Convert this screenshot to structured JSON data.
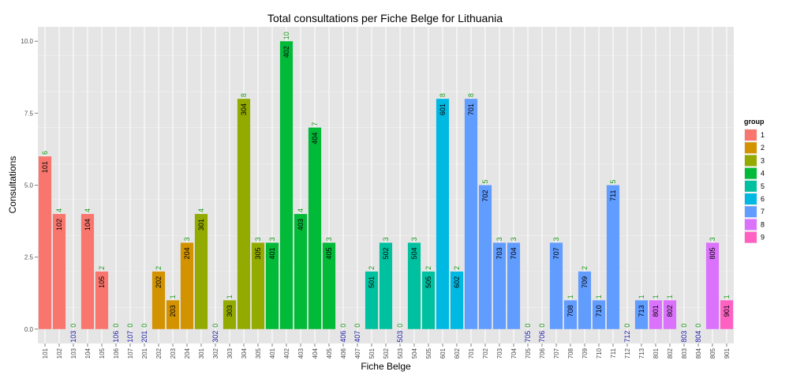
{
  "chart_data": {
    "type": "bar",
    "title": "Total consultations per Fiche Belge for Lithuania",
    "xlabel": "Fiche Belge",
    "ylabel": "Consultations",
    "ylim": [
      0,
      10.5
    ],
    "yticks": [
      0,
      2.5,
      5,
      7.5,
      10
    ],
    "ytick_labels": [
      "0.0",
      "2.5",
      "5.0",
      "7.5",
      "10.0"
    ],
    "grid": true,
    "legend_position": "right",
    "legend_title": "group",
    "groups": [
      {
        "name": "1",
        "color": "#F8766D"
      },
      {
        "name": "2",
        "color": "#D39200"
      },
      {
        "name": "3",
        "color": "#93AA00"
      },
      {
        "name": "4",
        "color": "#00BA38"
      },
      {
        "name": "5",
        "color": "#00C19F"
      },
      {
        "name": "6",
        "color": "#00B9E3"
      },
      {
        "name": "7",
        "color": "#619CFF"
      },
      {
        "name": "8",
        "color": "#DB72FB"
      },
      {
        "name": "9",
        "color": "#FF61C3"
      }
    ],
    "categories": [
      "101",
      "102",
      "103",
      "104",
      "105",
      "106",
      "107",
      "201",
      "202",
      "203",
      "204",
      "301",
      "302",
      "303",
      "304",
      "305",
      "401",
      "402",
      "403",
      "404",
      "405",
      "406",
      "407",
      "501",
      "502",
      "503",
      "504",
      "505",
      "601",
      "602",
      "701",
      "702",
      "703",
      "704",
      "705",
      "706",
      "707",
      "708",
      "709",
      "710",
      "711",
      "712",
      "713",
      "801",
      "802",
      "803",
      "804",
      "805",
      "901"
    ],
    "values": [
      6,
      4,
      0,
      4,
      2,
      0,
      0,
      0,
      2,
      1,
      3,
      4,
      0,
      1,
      8,
      3,
      3,
      10,
      4,
      7,
      3,
      0,
      0,
      2,
      3,
      0,
      3,
      2,
      8,
      2,
      8,
      5,
      3,
      3,
      0,
      0,
      3,
      1,
      2,
      1,
      5,
      0,
      1,
      1,
      1,
      0,
      0,
      3,
      1
    ],
    "group_of": [
      "1",
      "1",
      "1",
      "1",
      "1",
      "1",
      "1",
      "2",
      "2",
      "2",
      "2",
      "3",
      "3",
      "3",
      "3",
      "3",
      "4",
      "4",
      "4",
      "4",
      "4",
      "4",
      "4",
      "5",
      "5",
      "5",
      "5",
      "5",
      "6",
      "6",
      "7",
      "7",
      "7",
      "7",
      "7",
      "7",
      "7",
      "7",
      "7",
      "7",
      "7",
      "7",
      "7",
      "8",
      "8",
      "8",
      "8",
      "8",
      "9"
    ]
  }
}
